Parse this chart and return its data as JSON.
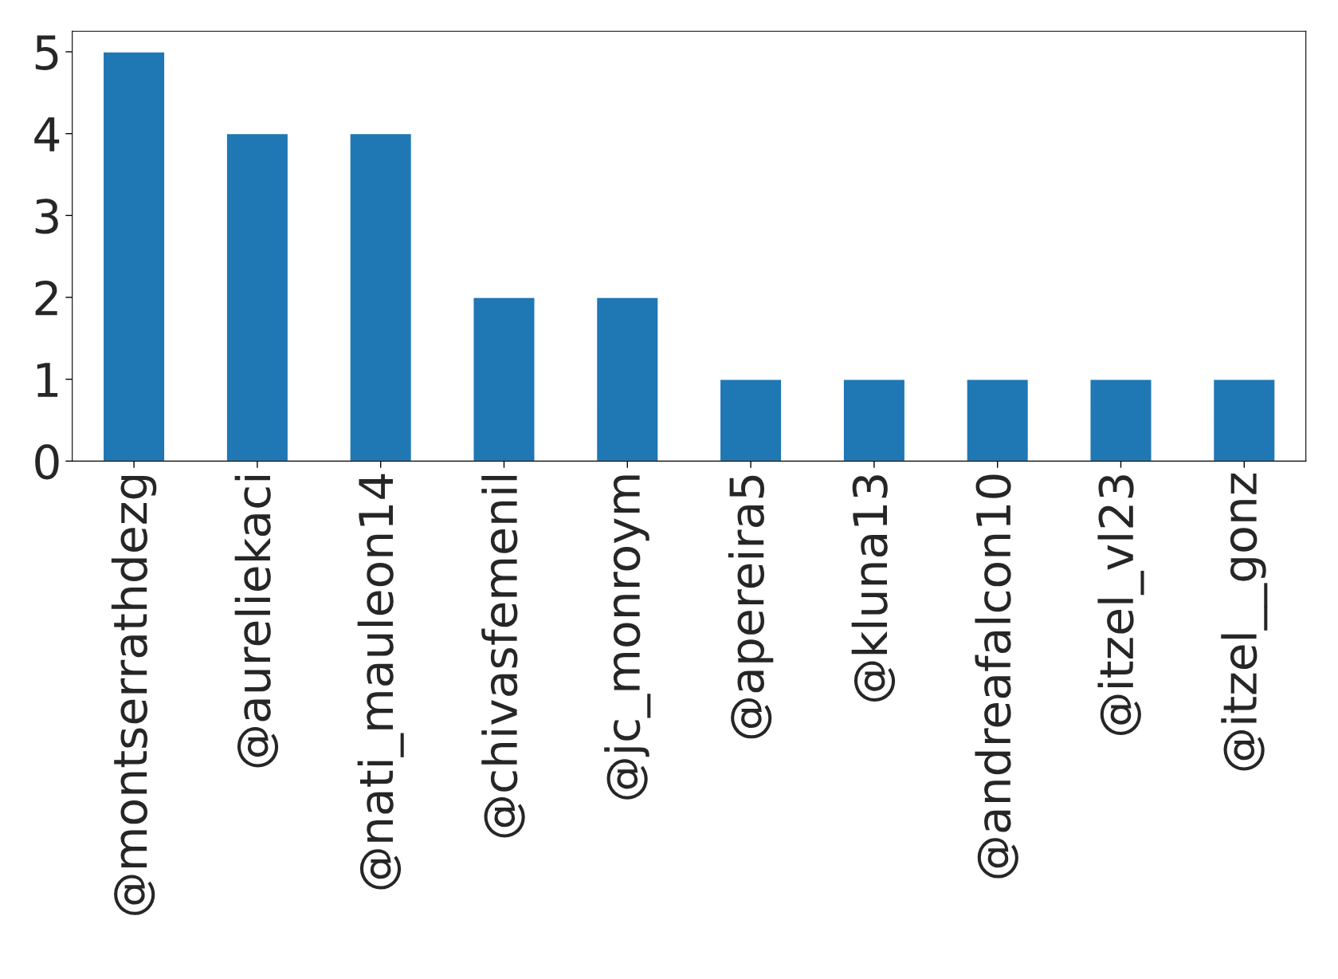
{
  "chart_data": {
    "type": "bar",
    "categories": [
      "@montserrathdezg",
      "@aureliekaci",
      "@nati_mauleon14",
      "@chivasfemenil",
      "@jc_monroym",
      "@apereira5",
      "@kluna13",
      "@andreafalcon10",
      "@itzel_vl23",
      "@itzel__gonz"
    ],
    "values": [
      5,
      4,
      4,
      2,
      2,
      1,
      1,
      1,
      1,
      1
    ],
    "color": "#1f77b4",
    "ylim": [
      0,
      5.25
    ],
    "yticks": [
      0,
      1,
      2,
      3,
      4,
      5
    ],
    "grid": false,
    "legend": false
  }
}
